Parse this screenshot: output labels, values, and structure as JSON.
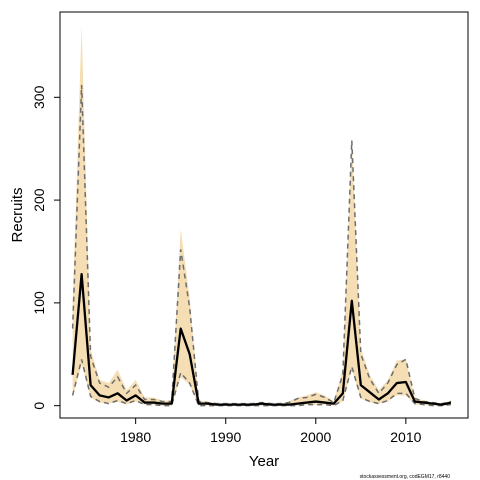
{
  "chart_data": {
    "type": "line",
    "title": "",
    "xlabel": "Year",
    "ylabel": "Recruits",
    "xlim": [
      1971.6,
      2016.9
    ],
    "ylim": [
      -12,
      383
    ],
    "x_ticks": [
      1980,
      1990,
      2000,
      2010
    ],
    "y_ticks": [
      0,
      100,
      200,
      300
    ],
    "grid": false,
    "legend": "none",
    "band_color": "#F5DEB3",
    "line_color": "#000000",
    "ci_color": "#6E6E6E",
    "x": [
      1973,
      1974,
      1975,
      1976,
      1977,
      1978,
      1979,
      1980,
      1981,
      1982,
      1983,
      1984,
      1985,
      1986,
      1987,
      1988,
      1989,
      1990,
      1991,
      1992,
      1993,
      1994,
      1995,
      1996,
      1997,
      1998,
      1999,
      2000,
      2001,
      2002,
      2003,
      2004,
      2005,
      2006,
      2007,
      2008,
      2009,
      2010,
      2011,
      2012,
      2013,
      2014,
      2015
    ],
    "series": [
      {
        "role": "estimate",
        "values": [
          30,
          128,
          20,
          10,
          8,
          12,
          5,
          10,
          3,
          3,
          2,
          2,
          75,
          50,
          2,
          2,
          1,
          1,
          1,
          1,
          1,
          2,
          1,
          1,
          1,
          2,
          3,
          4,
          3,
          2,
          12,
          102,
          20,
          13,
          6,
          12,
          22,
          23,
          4,
          3,
          2,
          1,
          3
        ]
      },
      {
        "role": "upper",
        "values": [
          97,
          370,
          55,
          25,
          22,
          35,
          15,
          25,
          8,
          8,
          5,
          5,
          172,
          105,
          5,
          4,
          2,
          2,
          2,
          2,
          2,
          3,
          2,
          2,
          4,
          8,
          10,
          13,
          10,
          4,
          35,
          258,
          56,
          30,
          15,
          25,
          44,
          45,
          8,
          5,
          3,
          2,
          5
        ]
      },
      {
        "role": "lower",
        "values": [
          8,
          40,
          8,
          3,
          2,
          4,
          1,
          4,
          1,
          1,
          0,
          0,
          28,
          20,
          0,
          0,
          0,
          0,
          0,
          0,
          0,
          0,
          0,
          0,
          0,
          0,
          1,
          1,
          1,
          0,
          4,
          35,
          7,
          3,
          2,
          4,
          10,
          10,
          1,
          1,
          0,
          0,
          1
        ]
      },
      {
        "role": "upper-dashed",
        "values": [
          75,
          312,
          48,
          22,
          18,
          28,
          12,
          20,
          6,
          6,
          4,
          4,
          152,
          95,
          4,
          3,
          2,
          2,
          2,
          2,
          2,
          3,
          2,
          2,
          3,
          7,
          8,
          11,
          8,
          3,
          30,
          258,
          50,
          26,
          12,
          22,
          40,
          45,
          7,
          4,
          3,
          2,
          4
        ]
      },
      {
        "role": "lower-dashed",
        "values": [
          10,
          45,
          9,
          4,
          2,
          5,
          2,
          5,
          1,
          1,
          0,
          0,
          32,
          22,
          0,
          0,
          0,
          0,
          0,
          0,
          0,
          0,
          0,
          0,
          0,
          0,
          1,
          1,
          1,
          0,
          5,
          38,
          8,
          4,
          2,
          5,
          12,
          12,
          2,
          1,
          0,
          0,
          1
        ]
      }
    ]
  },
  "credit": "stockassessment.org, codEGM17, r8440"
}
